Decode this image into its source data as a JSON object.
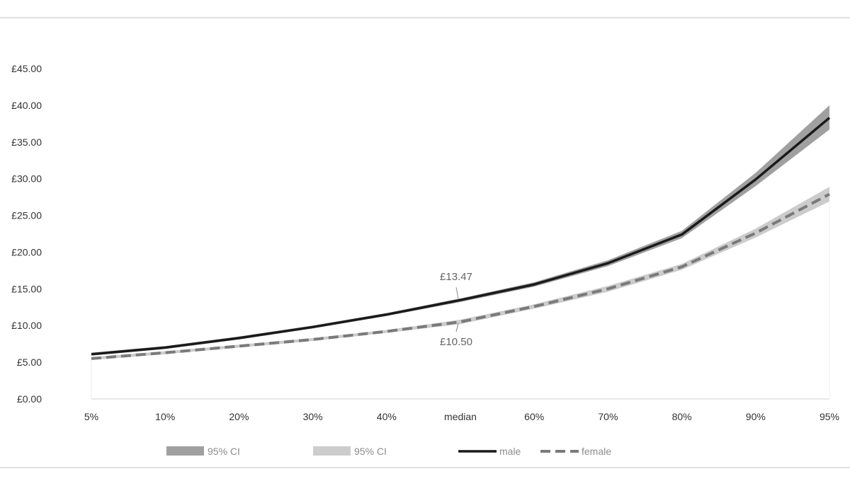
{
  "chart_data": {
    "type": "line",
    "title": "",
    "xlabel": "",
    "ylabel": "",
    "categories": [
      "5%",
      "10%",
      "20%",
      "30%",
      "40%",
      "median",
      "60%",
      "70%",
      "80%",
      "90%",
      "95%"
    ],
    "y_ticks": [
      "£0.00",
      "£5.00",
      "£10.00",
      "£15.00",
      "£20.00",
      "£25.00",
      "£30.00",
      "£35.00",
      "£40.00",
      "£45.00"
    ],
    "ylim": [
      0,
      45
    ],
    "grid": false,
    "legend_position": "bottom",
    "series": [
      {
        "name": "male",
        "style": "solid",
        "color": "#1a1a1a",
        "values": [
          6.1,
          7.0,
          8.3,
          9.8,
          11.5,
          13.47,
          15.6,
          18.5,
          22.4,
          29.9,
          38.3
        ],
        "ci_lower": [
          5.9,
          6.8,
          8.1,
          9.6,
          11.3,
          13.2,
          15.3,
          18.1,
          21.9,
          29.0,
          36.7
        ],
        "ci_upper": [
          6.3,
          7.2,
          8.5,
          10.0,
          11.7,
          13.7,
          15.9,
          18.9,
          22.9,
          30.8,
          40.0
        ],
        "ci_color": "#a0a0a0"
      },
      {
        "name": "female",
        "style": "dashed",
        "color": "#7a7a7a",
        "values": [
          5.5,
          6.3,
          7.2,
          8.1,
          9.2,
          10.5,
          12.6,
          15.0,
          18.0,
          22.6,
          27.9
        ],
        "ci_lower": [
          5.3,
          6.1,
          7.0,
          7.9,
          9.0,
          10.2,
          12.3,
          14.6,
          17.6,
          22.0,
          26.9
        ],
        "ci_upper": [
          5.7,
          6.5,
          7.4,
          8.3,
          9.4,
          10.8,
          12.9,
          15.4,
          18.4,
          23.2,
          28.9
        ],
        "ci_color": "#cccccc"
      }
    ],
    "annotations": [
      {
        "text": "£13.47",
        "series": "male",
        "category": "median"
      },
      {
        "text": "£10.50",
        "series": "female",
        "category": "median"
      }
    ],
    "legend": [
      {
        "label": "95% CI",
        "kind": "band",
        "color": "#a0a0a0"
      },
      {
        "label": "95% CI",
        "kind": "band",
        "color": "#cccccc"
      },
      {
        "label": "male",
        "kind": "line",
        "color": "#1a1a1a"
      },
      {
        "label": "female",
        "kind": "dashed",
        "color": "#7a7a7a"
      }
    ]
  }
}
